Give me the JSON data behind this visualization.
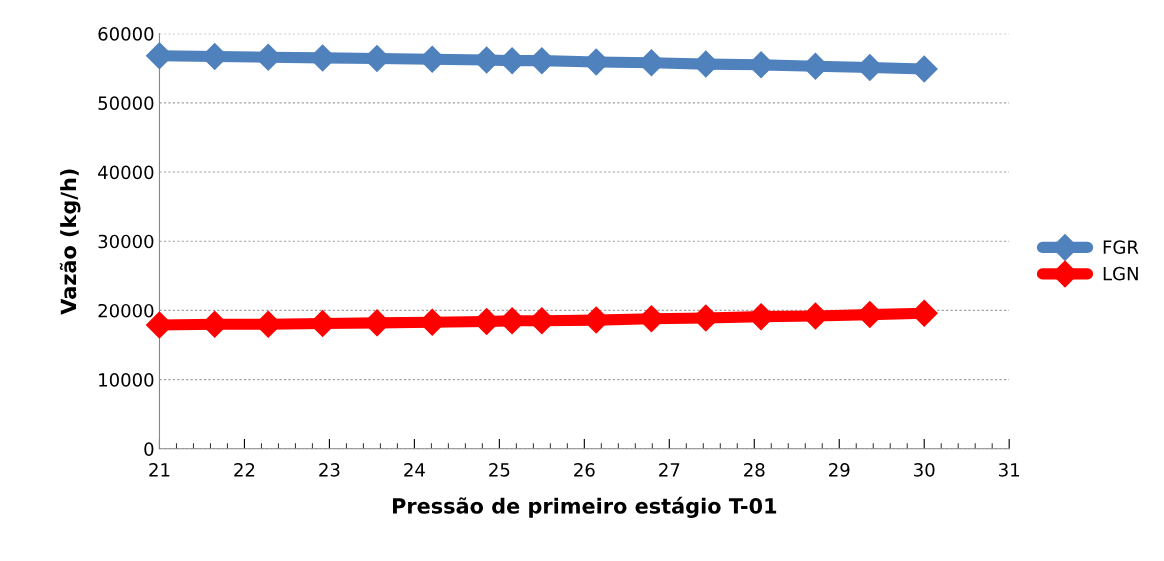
{
  "chart_data": {
    "type": "line",
    "xlabel": "Pressão de primeiro estágio T-01",
    "ylabel": "Vazão (kg/h)",
    "x": [
      21,
      21.65,
      22.28,
      22.92,
      23.56,
      24.21,
      24.85,
      25.15,
      25.5,
      26.14,
      26.79,
      27.43,
      28.08,
      28.72,
      29.36,
      30
    ],
    "series": [
      {
        "name": "FGR",
        "color": "#4f81bd",
        "values": [
          56800,
          56700,
          56600,
          56500,
          56400,
          56300,
          56200,
          56100,
          56100,
          55900,
          55800,
          55600,
          55500,
          55300,
          55100,
          54900
        ]
      },
      {
        "name": "LGN",
        "color": "#ff0000",
        "values": [
          17900,
          18000,
          18000,
          18100,
          18200,
          18300,
          18400,
          18500,
          18500,
          18600,
          18800,
          18900,
          19100,
          19200,
          19400,
          19600
        ]
      }
    ],
    "xlim": [
      21,
      31
    ],
    "xticks": [
      21,
      22,
      23,
      24,
      25,
      26,
      27,
      28,
      29,
      30,
      31
    ],
    "ylim": [
      0,
      60000
    ],
    "yticks": [
      0,
      10000,
      20000,
      30000,
      40000,
      50000,
      60000
    ],
    "grid": "y",
    "legend": "right",
    "marker": "diamond",
    "line_style": "solid"
  }
}
